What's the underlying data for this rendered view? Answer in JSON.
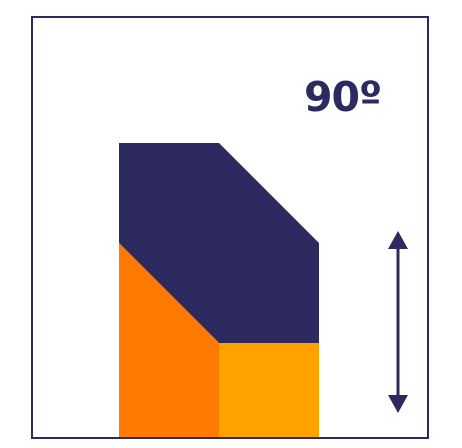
{
  "label": {
    "angle": "90º"
  },
  "colors": {
    "frame_border": "#2d2a5f",
    "top_section": "#2d2a5f",
    "left_lower_section": "#ff7a00",
    "right_lower_section": "#ffa200",
    "arrow": "#2d2a5f",
    "text": "#2d2a5f"
  },
  "icons": {
    "vertical_arrow": "double-headed-vertical-arrow-icon"
  }
}
